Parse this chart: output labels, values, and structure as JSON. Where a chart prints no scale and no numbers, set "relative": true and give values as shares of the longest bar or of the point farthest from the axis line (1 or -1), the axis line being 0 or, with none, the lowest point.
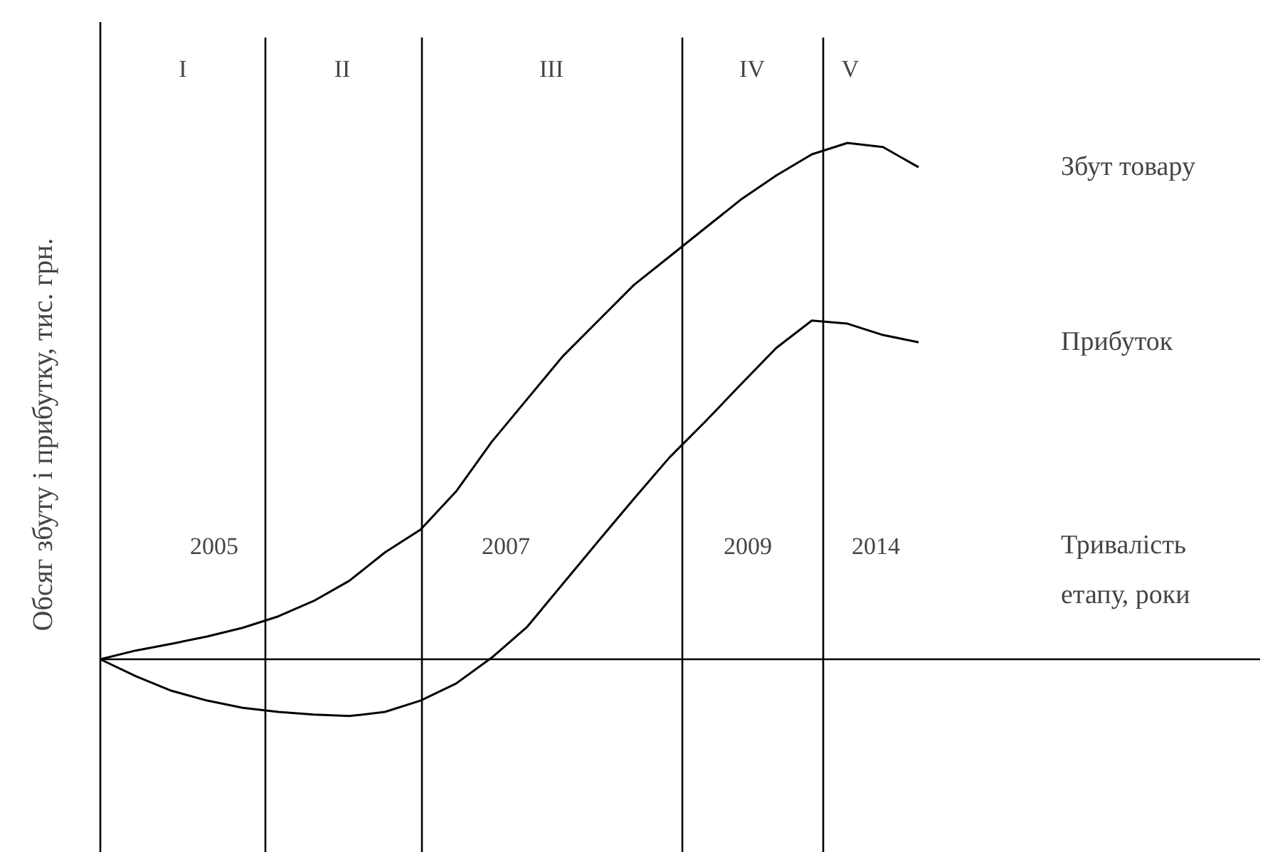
{
  "chart_data": {
    "type": "line",
    "relative": true,
    "ylabel": "Обсяг збуту і прибутку, тис. грн.",
    "categories": [
      null,
      null,
      null,
      null,
      null,
      null,
      null,
      null,
      null,
      null,
      null,
      null,
      null,
      null,
      null,
      null,
      null,
      null,
      null,
      null,
      null,
      null,
      null,
      null
    ],
    "series": [
      {
        "name": "Збут товару",
        "color": "#000000",
        "values": [
          0,
          0.017,
          0.03,
          0.044,
          0.061,
          0.083,
          0.113,
          0.152,
          0.207,
          0.251,
          0.325,
          0.421,
          0.504,
          0.587,
          0.656,
          0.725,
          0.78,
          0.835,
          0.89,
          0.937,
          0.978,
          1.0,
          0.992,
          0.953
        ]
      },
      {
        "name": "Прибуток",
        "color": "#000000",
        "values": [
          0,
          -0.033,
          -0.061,
          -0.08,
          -0.094,
          -0.102,
          -0.107,
          -0.11,
          -0.102,
          -0.08,
          -0.047,
          0.003,
          0.063,
          0.146,
          0.229,
          0.311,
          0.391,
          0.46,
          0.532,
          0.603,
          0.656,
          0.65,
          0.628,
          0.614
        ]
      }
    ],
    "line_style": "solid",
    "annotations": [
      "I",
      "II",
      "III",
      "IV",
      "V",
      "2005",
      "2007",
      "2009",
      "2014",
      "Тривалість\nетапу, роки"
    ]
  }
}
